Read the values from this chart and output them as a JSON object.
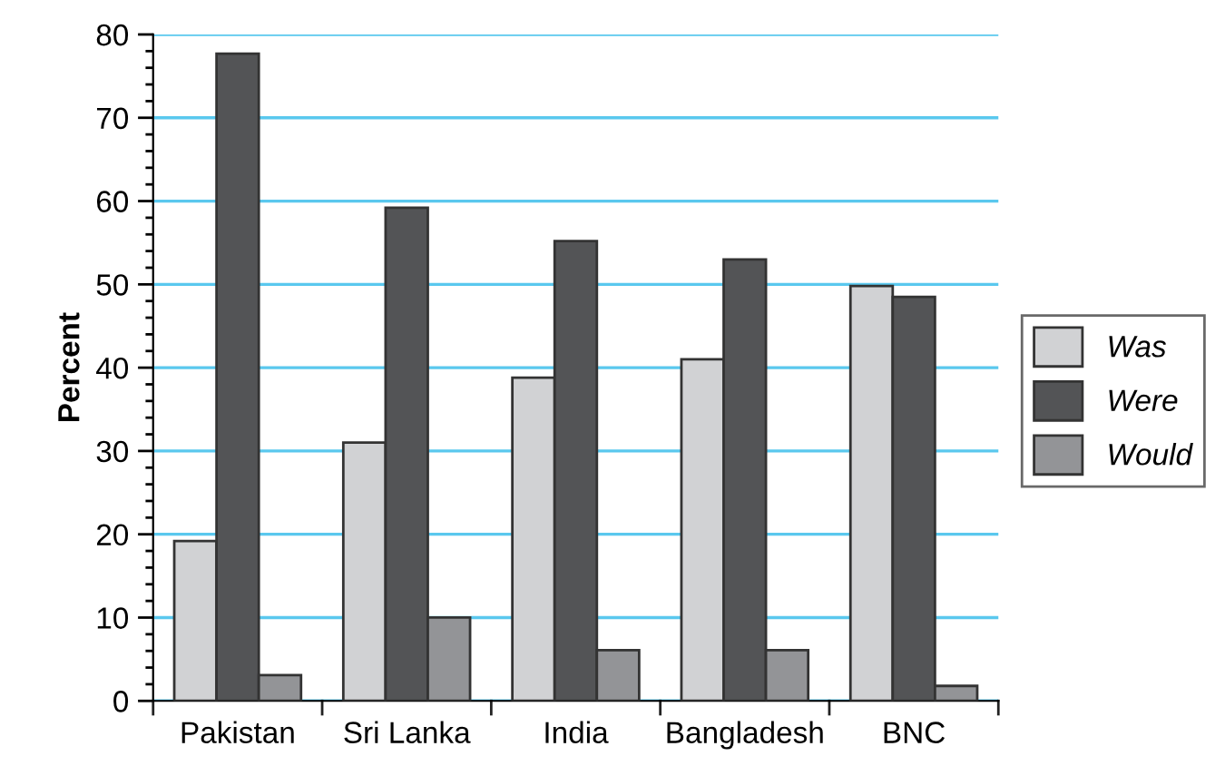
{
  "chart_data": {
    "type": "bar",
    "ylabel": "Percent",
    "categories": [
      "Pakistan",
      "Sri Lanka",
      "India",
      "Bangladesh",
      "BNC"
    ],
    "series": [
      {
        "name": "Was",
        "color": "#d1d2d4",
        "values": [
          19.2,
          31.0,
          38.8,
          41.0,
          49.8
        ]
      },
      {
        "name": "Were",
        "color": "#535456",
        "values": [
          77.7,
          59.2,
          55.2,
          53.0,
          48.5
        ]
      },
      {
        "name": "Would",
        "color": "#939497",
        "values": [
          3.1,
          10.0,
          6.1,
          6.1,
          1.8
        ]
      }
    ],
    "ylim": [
      0,
      80
    ],
    "yticks": [
      0,
      10,
      20,
      30,
      40,
      50,
      60,
      70,
      80
    ],
    "grid": "y",
    "legend": "right"
  }
}
